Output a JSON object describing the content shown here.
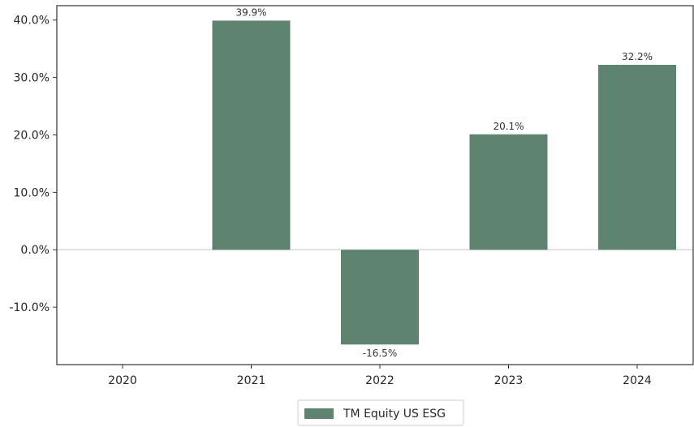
{
  "chart_data": {
    "type": "bar",
    "categories": [
      "2020",
      "2021",
      "2022",
      "2023",
      "2024"
    ],
    "series": [
      {
        "name": "TM Equity US ESG",
        "values": [
          null,
          39.9,
          -16.5,
          20.1,
          32.2
        ],
        "data_labels": [
          "",
          "39.9%",
          "-16.5%",
          "20.1%",
          "32.2%"
        ]
      }
    ],
    "yticks": [
      40,
      30,
      20,
      10,
      0,
      -10
    ],
    "ytick_labels": [
      "40.0%",
      "30.0%",
      "20.0%",
      "10.0%",
      "0.0%",
      "-10.0%"
    ],
    "ylim": [
      -20,
      42.5
    ],
    "title": "",
    "xlabel": "",
    "ylabel": "",
    "grid": false,
    "legend": "bottom-center",
    "colors": {
      "bar": "#5e8470",
      "axis": "#333333",
      "zero_line": "#d9d9d9"
    }
  }
}
